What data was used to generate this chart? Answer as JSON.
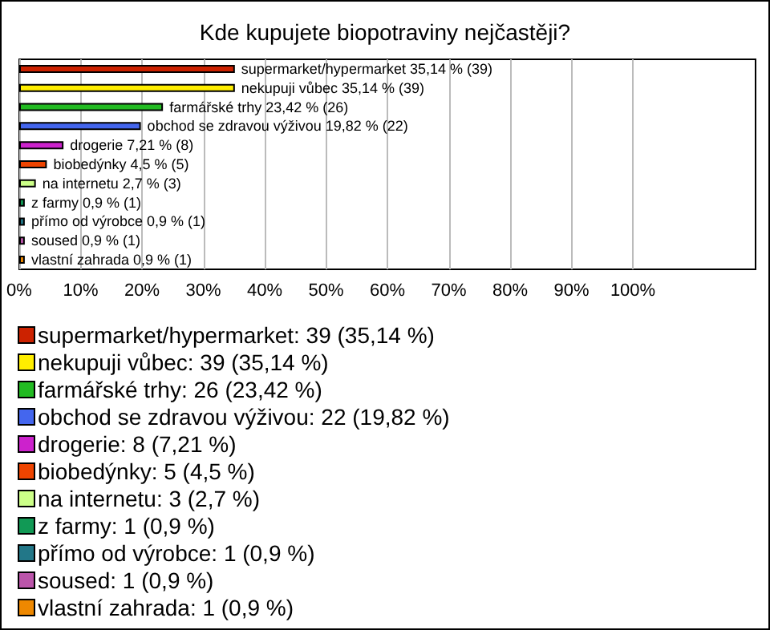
{
  "chart_data": {
    "type": "bar",
    "title": "Kde kupujete biopotraviny nejčastěji?",
    "orientation": "horizontal",
    "categories": [
      null,
      null,
      null,
      null,
      null,
      null,
      null,
      null,
      null,
      null,
      null
    ],
    "series": [
      {
        "name": "supermarket/hypermarket: 39 (35,14 %)",
        "color": "#cc2200",
        "values": [
          35.14,
          null,
          null,
          null,
          null,
          null,
          null,
          null,
          null,
          null,
          null
        ],
        "value_labels": [
          "supermarket/hypermarket 35,14 % (39)",
          null,
          null,
          null,
          null,
          null,
          null,
          null,
          null,
          null,
          null
        ]
      },
      {
        "name": "nekupuji vůbec: 39 (35,14 %)",
        "color": "#ffee00",
        "values": [
          null,
          35.14,
          null,
          null,
          null,
          null,
          null,
          null,
          null,
          null,
          null
        ],
        "value_labels": [
          null,
          "nekupuji vůbec 35,14 % (39)",
          null,
          null,
          null,
          null,
          null,
          null,
          null,
          null,
          null
        ]
      },
      {
        "name": "farmářské trhy: 26 (23,42 %)",
        "color": "#22bb22",
        "values": [
          null,
          null,
          23.42,
          null,
          null,
          null,
          null,
          null,
          null,
          null,
          null
        ],
        "value_labels": [
          null,
          null,
          "farmářské trhy 23,42 % (26)",
          null,
          null,
          null,
          null,
          null,
          null,
          null,
          null
        ]
      },
      {
        "name": "obchod se zdravou výživou: 22 (19,82 %)",
        "color": "#4466ee",
        "values": [
          null,
          null,
          null,
          19.82,
          null,
          null,
          null,
          null,
          null,
          null,
          null
        ],
        "value_labels": [
          null,
          null,
          null,
          "obchod se zdravou výživou 19,82 % (22)",
          null,
          null,
          null,
          null,
          null,
          null,
          null
        ]
      },
      {
        "name": "drogerie: 8 (7,21 %)",
        "color": "#cc22cc",
        "values": [
          null,
          null,
          null,
          null,
          7.21,
          null,
          null,
          null,
          null,
          null,
          null
        ],
        "value_labels": [
          null,
          null,
          null,
          null,
          "drogerie 7,21 % (8)",
          null,
          null,
          null,
          null,
          null,
          null
        ]
      },
      {
        "name": "biobedýnky: 5 (4,5 %)",
        "color": "#ee4400",
        "values": [
          null,
          null,
          null,
          null,
          null,
          4.5,
          null,
          null,
          null,
          null,
          null
        ],
        "value_labels": [
          null,
          null,
          null,
          null,
          null,
          "biobedýnky 4,5 % (5)",
          null,
          null,
          null,
          null,
          null
        ]
      },
      {
        "name": "na internetu: 3 (2,7 %)",
        "color": "#ccff88",
        "values": [
          null,
          null,
          null,
          null,
          null,
          null,
          2.7,
          null,
          null,
          null,
          null
        ],
        "value_labels": [
          null,
          null,
          null,
          null,
          null,
          null,
          "na internetu 2,7 % (3)",
          null,
          null,
          null,
          null
        ]
      },
      {
        "name": "z farmy: 1 (0,9 %)",
        "color": "#119955",
        "values": [
          null,
          null,
          null,
          null,
          null,
          null,
          null,
          0.9,
          null,
          null,
          null
        ],
        "value_labels": [
          null,
          null,
          null,
          null,
          null,
          null,
          null,
          "z farmy 0,9 % (1)",
          null,
          null,
          null
        ]
      },
      {
        "name": "přímo od výrobce: 1 (0,9 %)",
        "color": "#227788",
        "values": [
          null,
          null,
          null,
          null,
          null,
          null,
          null,
          null,
          0.9,
          null,
          null
        ],
        "value_labels": [
          null,
          null,
          null,
          null,
          null,
          null,
          null,
          null,
          "přímo od výrobce 0,9 % (1)",
          null,
          null
        ]
      },
      {
        "name": "soused: 1 (0,9 %)",
        "color": "#bb55aa",
        "values": [
          null,
          null,
          null,
          null,
          null,
          null,
          null,
          null,
          null,
          0.9,
          null
        ],
        "value_labels": [
          null,
          null,
          null,
          null,
          null,
          null,
          null,
          null,
          null,
          "soused 0,9 % (1)",
          null
        ]
      },
      {
        "name": "vlastní zahrada: 1 (0,9 %)",
        "color": "#ee8800",
        "values": [
          null,
          null,
          null,
          null,
          null,
          null,
          null,
          null,
          null,
          null,
          0.9
        ],
        "value_labels": [
          null,
          null,
          null,
          null,
          null,
          null,
          null,
          null,
          null,
          null,
          "vlastní zahrada 0,9 % (1)"
        ]
      }
    ],
    "xlim": [
      0,
      120
    ],
    "xticks": [
      {
        "value": 0,
        "label": "0%"
      },
      {
        "value": 10,
        "label": "10%"
      },
      {
        "value": 20,
        "label": "20%"
      },
      {
        "value": 30,
        "label": "30%"
      },
      {
        "value": 40,
        "label": "40%"
      },
      {
        "value": 50,
        "label": "50%"
      },
      {
        "value": 60,
        "label": "60%"
      },
      {
        "value": 70,
        "label": "70%"
      },
      {
        "value": 80,
        "label": "80%"
      },
      {
        "value": 90,
        "label": "90%"
      },
      {
        "value": 100,
        "label": "100%"
      }
    ],
    "grid": "x",
    "legend": "bottom"
  }
}
